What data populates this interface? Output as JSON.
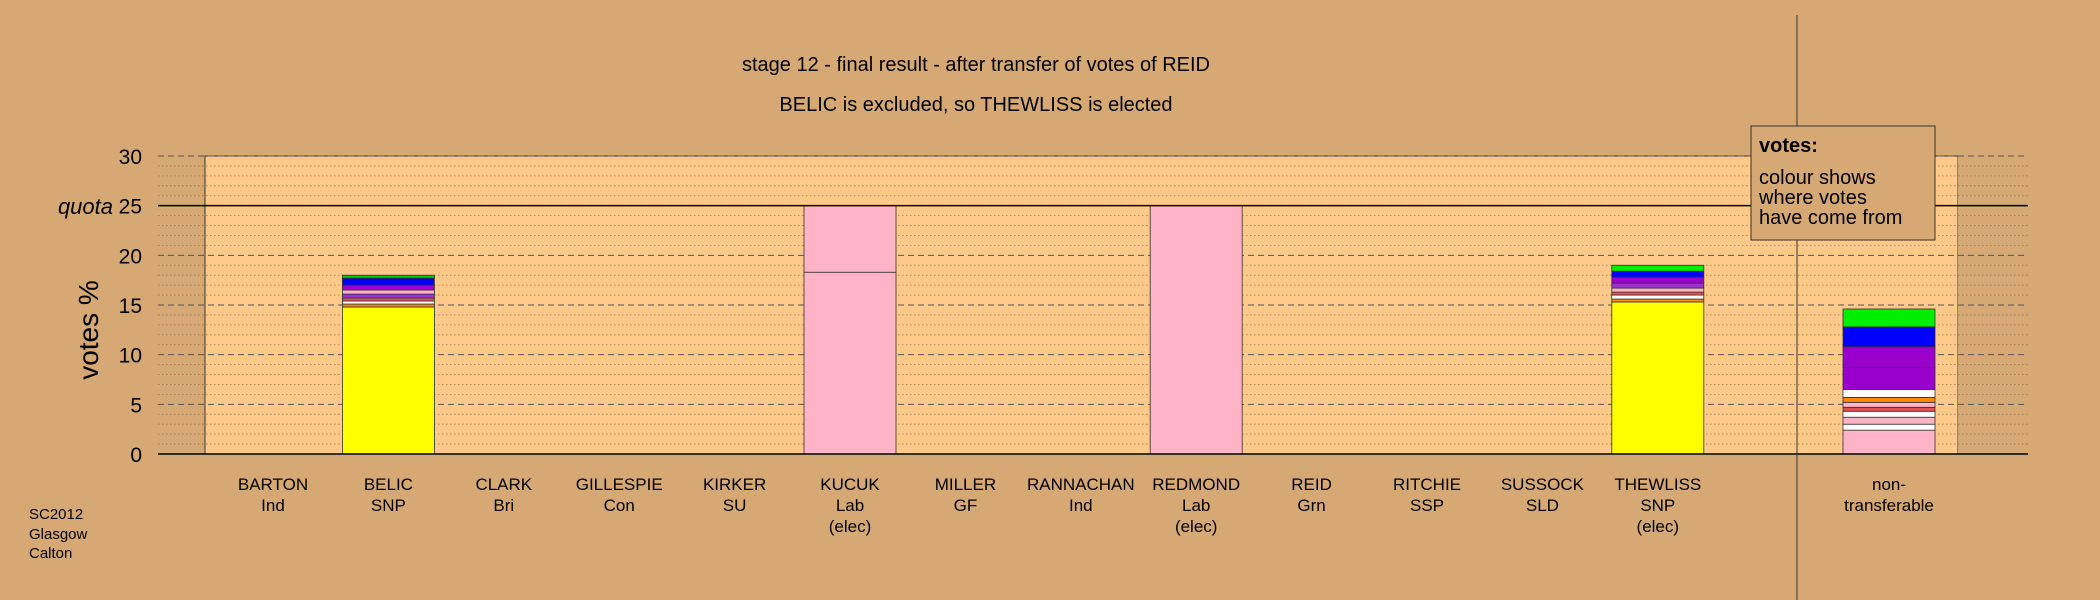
{
  "chart_data": {
    "type": "bar",
    "title": "stage 12 - final result - after transfer of votes of REID",
    "subtitle": "BELIC is excluded, so THEWLISS is elected",
    "ylabel": "votes %",
    "ylim": [
      0,
      30
    ],
    "yticks": [
      0,
      5,
      10,
      15,
      20,
      25,
      30
    ],
    "quota": 25,
    "quota_label": "quota",
    "grid": true,
    "legend_placement": "top-right",
    "legend": {
      "title": "votes:",
      "lines": [
        "colour shows",
        "where votes",
        "have come from"
      ]
    },
    "categories": [
      {
        "name": "BARTON",
        "party": "Ind",
        "note": "",
        "segments": []
      },
      {
        "name": "BELIC",
        "party": "SNP",
        "note": "",
        "segments": [
          {
            "value": 14.8,
            "color": "#ffff00"
          },
          {
            "value": 0.3,
            "color": "#ff8800"
          },
          {
            "value": 0.3,
            "color": "#ffffff"
          },
          {
            "value": 0.3,
            "color": "#e05050"
          },
          {
            "value": 0.4,
            "color": "#9933cc"
          },
          {
            "value": 0.4,
            "color": "#ffb3c6"
          },
          {
            "value": 0.5,
            "color": "#9900cc"
          },
          {
            "value": 0.7,
            "color": "#0000ff"
          },
          {
            "value": 0.3,
            "color": "#00cc00"
          }
        ]
      },
      {
        "name": "CLARK",
        "party": "Bri",
        "note": "",
        "segments": []
      },
      {
        "name": "GILLESPIE",
        "party": "Con",
        "note": "",
        "segments": []
      },
      {
        "name": "KIRKER",
        "party": "SU",
        "note": "",
        "segments": []
      },
      {
        "name": "KUCUK",
        "party": "Lab",
        "note": "(elec)",
        "segments": [
          {
            "value": 18.3,
            "color": "#ffb3c6"
          },
          {
            "value": 6.7,
            "color": "#ffb3c6"
          }
        ]
      },
      {
        "name": "MILLER",
        "party": "GF",
        "note": "",
        "segments": []
      },
      {
        "name": "RANNACHAN",
        "party": "Ind",
        "note": "",
        "segments": []
      },
      {
        "name": "REDMOND",
        "party": "Lab",
        "note": "(elec)",
        "segments": [
          {
            "value": 25,
            "color": "#ffb3c6"
          }
        ]
      },
      {
        "name": "REID",
        "party": "Grn",
        "note": "",
        "segments": []
      },
      {
        "name": "RITCHIE",
        "party": "SSP",
        "note": "",
        "segments": []
      },
      {
        "name": "SUSSOCK",
        "party": "SLD",
        "note": "",
        "segments": []
      },
      {
        "name": "THEWLISS",
        "party": "SNP",
        "note": "(elec)",
        "segments": [
          {
            "value": 15.3,
            "color": "#ffff00"
          },
          {
            "value": 0.3,
            "color": "#ff8800"
          },
          {
            "value": 0.4,
            "color": "#ffffff"
          },
          {
            "value": 0.3,
            "color": "#e05050"
          },
          {
            "value": 0.4,
            "color": "#ffb3c6"
          },
          {
            "value": 0.5,
            "color": "#9933cc"
          },
          {
            "value": 0.6,
            "color": "#9900cc"
          },
          {
            "value": 0.6,
            "color": "#0000ff"
          },
          {
            "value": 0.6,
            "color": "#00ee00"
          }
        ]
      },
      {
        "name": "non-",
        "party": "transferable",
        "note": "",
        "segments": [
          {
            "value": 2.4,
            "color": "#ffb3c6"
          },
          {
            "value": 0.6,
            "color": "#ffffff"
          },
          {
            "value": 0.7,
            "color": "#ffb3c6"
          },
          {
            "value": 0.6,
            "color": "#ffffff"
          },
          {
            "value": 0.4,
            "color": "#e05050"
          },
          {
            "value": 0.5,
            "color": "#ffb3c6"
          },
          {
            "value": 0.5,
            "color": "#ff8800"
          },
          {
            "value": 0.8,
            "color": "#ffffff"
          },
          {
            "value": 2.2,
            "color": "#9900cc"
          },
          {
            "value": 2.1,
            "color": "#9900cc"
          },
          {
            "value": 2.0,
            "color": "#0000ff"
          },
          {
            "value": 1.8,
            "color": "#00ee00"
          }
        ]
      }
    ],
    "footer": [
      "SC2012",
      "Glasgow",
      "Calton"
    ],
    "colors": {
      "background": "#d5a874",
      "plot_area": "#ffc98a",
      "side_panel": "#d5a874"
    }
  }
}
